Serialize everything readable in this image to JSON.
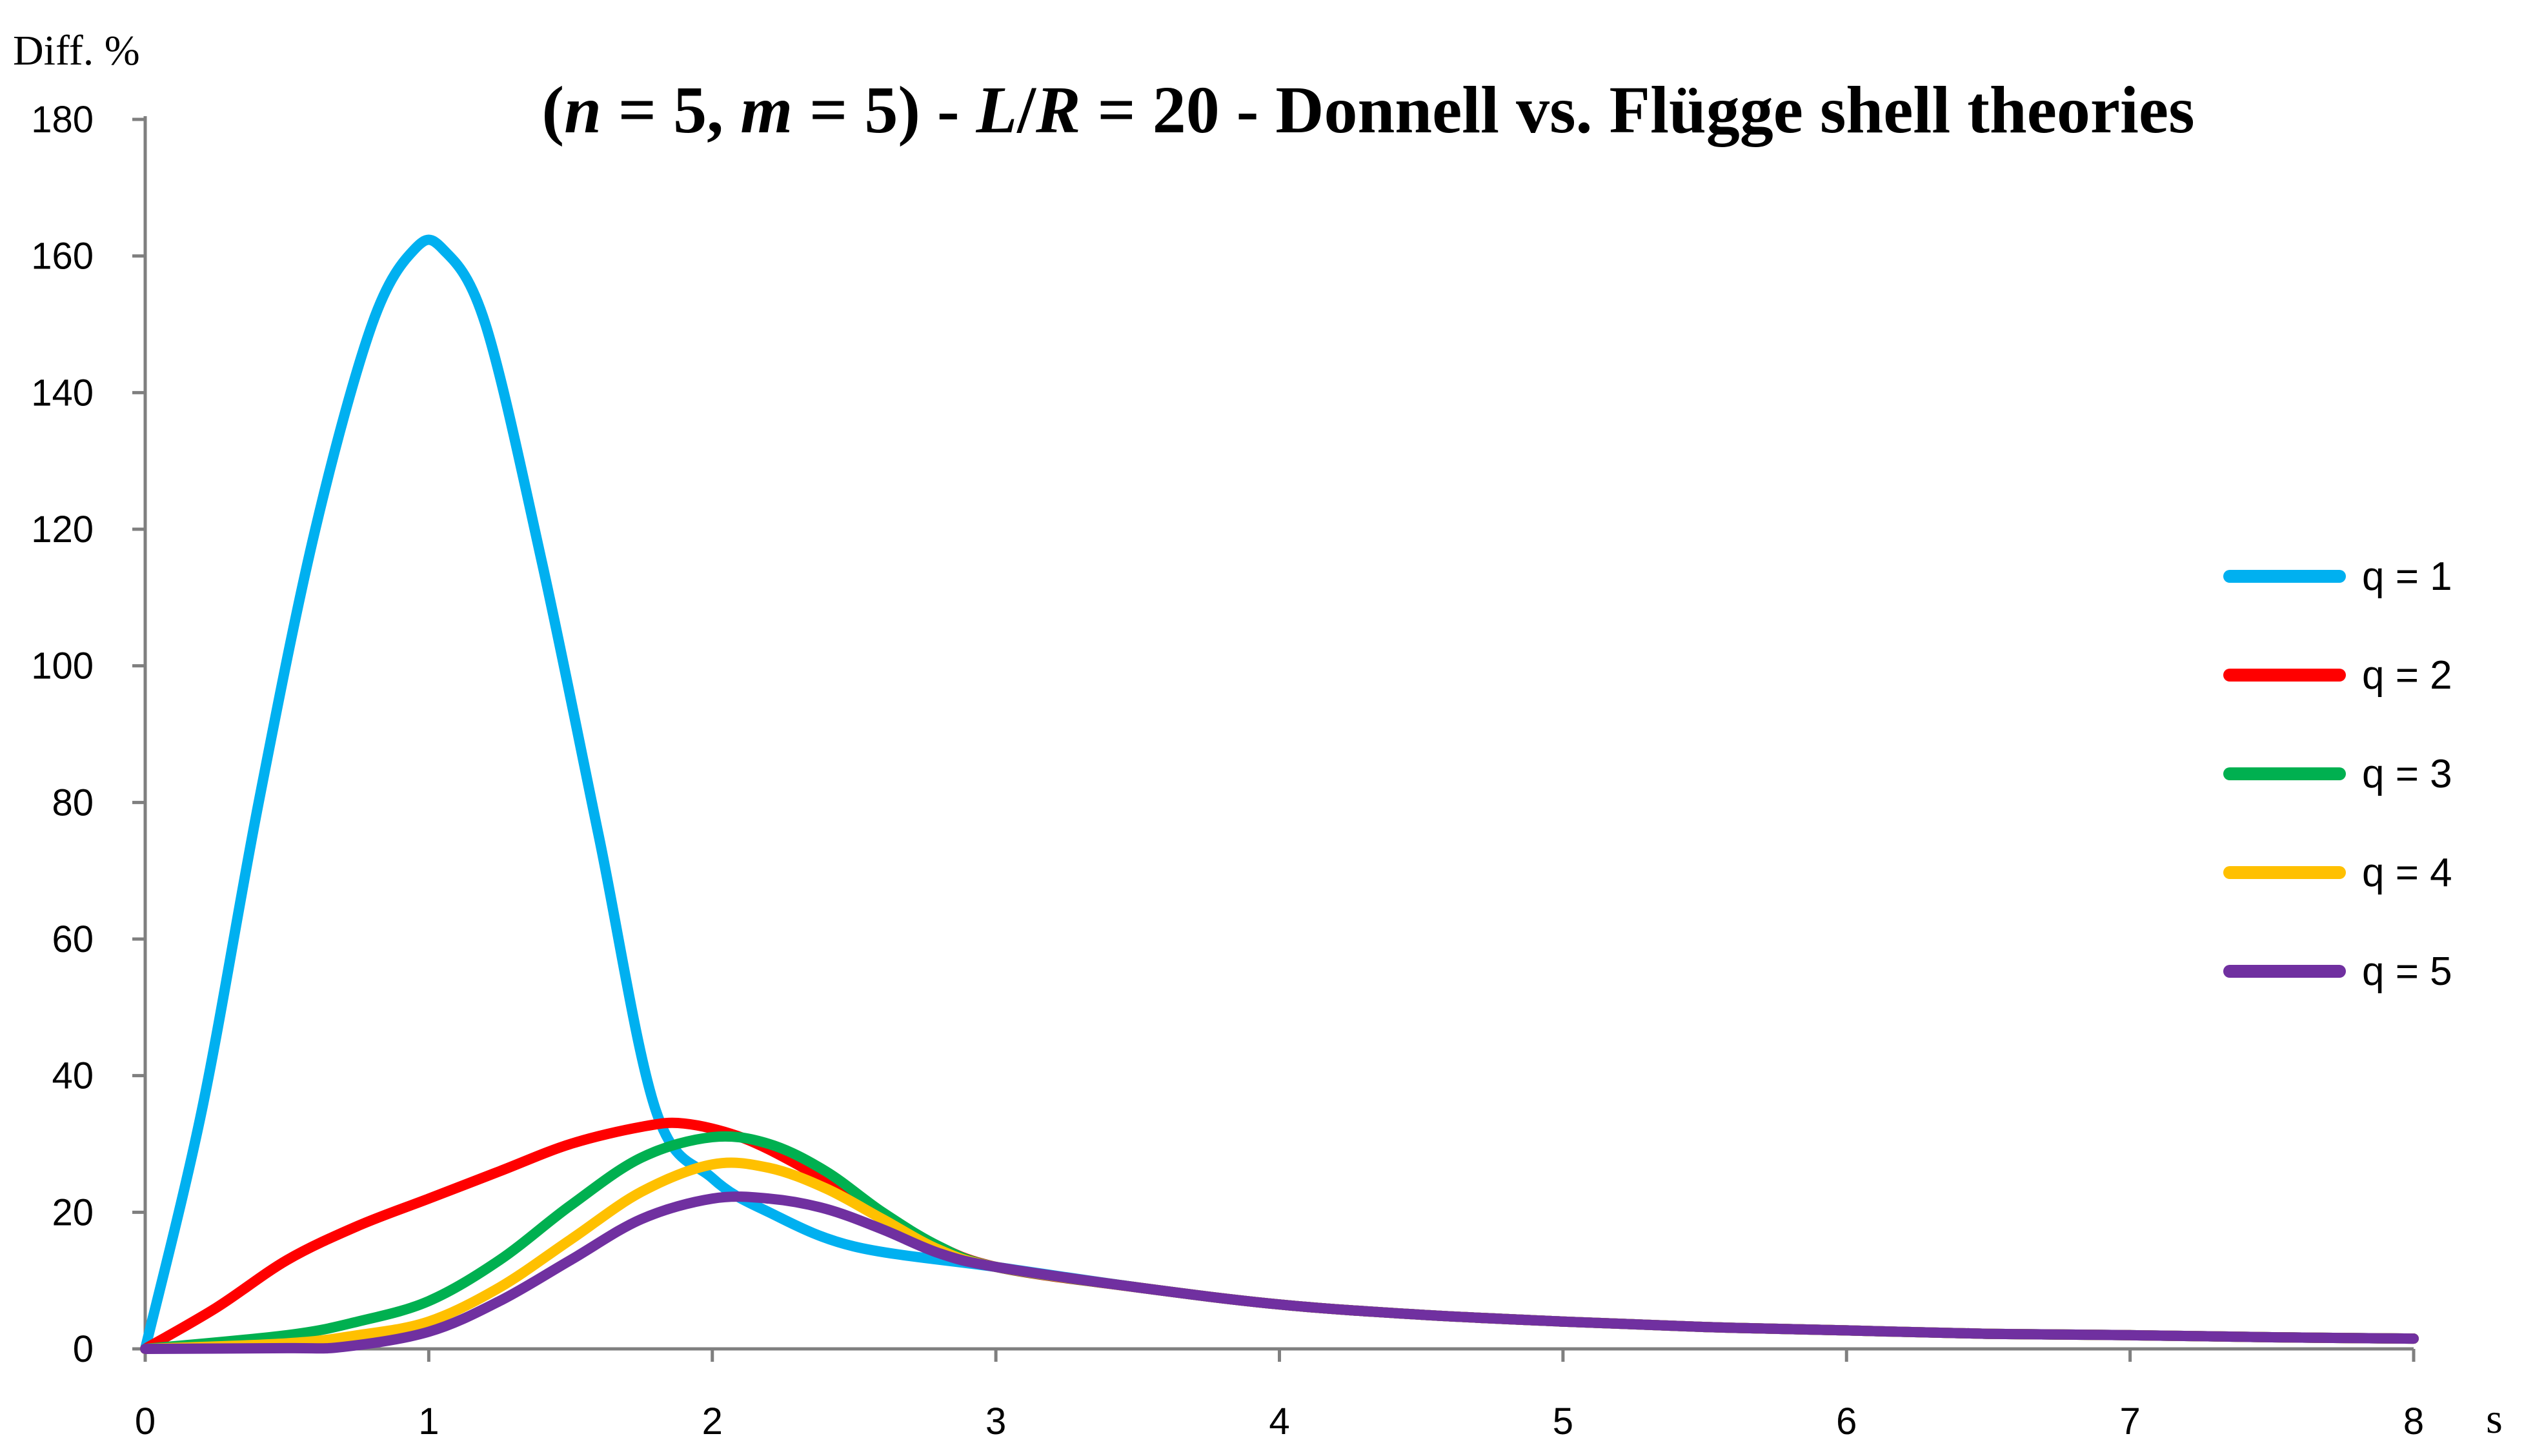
{
  "chart_data": {
    "type": "line",
    "title_parts": [
      {
        "text": "(",
        "italic": false
      },
      {
        "text": "n",
        "italic": true
      },
      {
        "text": " = 5, ",
        "italic": false
      },
      {
        "text": "m",
        "italic": true
      },
      {
        "text": " = 5) - ",
        "italic": false
      },
      {
        "text": "L",
        "italic": true
      },
      {
        "text": "/",
        "italic": false
      },
      {
        "text": "R",
        "italic": true
      },
      {
        "text": " = 20 - Donnell vs. Flügge shell theories",
        "italic": false
      }
    ],
    "ylabel": "Diff. %",
    "xlabel": "s",
    "xlim": [
      0,
      8
    ],
    "ylim": [
      0,
      180
    ],
    "x_ticks": [
      0,
      1,
      2,
      3,
      4,
      5,
      6,
      7,
      8
    ],
    "y_ticks": [
      0,
      20,
      40,
      60,
      80,
      100,
      120,
      140,
      160,
      180
    ],
    "grid": false,
    "legend_position": "right",
    "series": [
      {
        "name": "q = 1",
        "color": "#00B0F0",
        "points": [
          [
            0,
            0
          ],
          [
            0.2,
            35
          ],
          [
            0.4,
            80
          ],
          [
            0.6,
            120
          ],
          [
            0.8,
            150
          ],
          [
            0.95,
            161
          ],
          [
            1.05,
            161
          ],
          [
            1.2,
            150
          ],
          [
            1.4,
            115
          ],
          [
            1.6,
            75
          ],
          [
            1.8,
            35
          ],
          [
            2.0,
            25
          ],
          [
            2.2,
            20
          ],
          [
            2.5,
            15
          ],
          [
            3,
            12
          ],
          [
            3.5,
            9
          ],
          [
            4,
            6.5
          ],
          [
            4.5,
            5
          ],
          [
            5,
            4
          ],
          [
            5.5,
            3.2
          ],
          [
            6,
            2.7
          ],
          [
            6.5,
            2.2
          ],
          [
            7,
            2
          ],
          [
            7.5,
            1.7
          ],
          [
            8,
            1.5
          ]
        ]
      },
      {
        "name": "q = 2",
        "color": "#FF0000",
        "points": [
          [
            0,
            0
          ],
          [
            0.25,
            6
          ],
          [
            0.5,
            13
          ],
          [
            0.75,
            18
          ],
          [
            1,
            22
          ],
          [
            1.25,
            26
          ],
          [
            1.5,
            30
          ],
          [
            1.75,
            32.5
          ],
          [
            1.9,
            33
          ],
          [
            2.1,
            31
          ],
          [
            2.3,
            27
          ],
          [
            2.5,
            22
          ],
          [
            2.75,
            16
          ],
          [
            3,
            12
          ],
          [
            3.5,
            9
          ],
          [
            4,
            6.5
          ],
          [
            4.5,
            5
          ],
          [
            5,
            4
          ],
          [
            5.5,
            3.2
          ],
          [
            6,
            2.7
          ],
          [
            6.5,
            2.2
          ],
          [
            7,
            2
          ],
          [
            7.5,
            1.7
          ],
          [
            8,
            1.5
          ]
        ]
      },
      {
        "name": "q = 3",
        "color": "#00B050",
        "points": [
          [
            0,
            0
          ],
          [
            0.5,
            2
          ],
          [
            0.75,
            4
          ],
          [
            1,
            7
          ],
          [
            1.25,
            13
          ],
          [
            1.5,
            21
          ],
          [
            1.75,
            28
          ],
          [
            2,
            31
          ],
          [
            2.2,
            30
          ],
          [
            2.4,
            26
          ],
          [
            2.6,
            20
          ],
          [
            2.8,
            15
          ],
          [
            3,
            12
          ],
          [
            3.5,
            9
          ],
          [
            4,
            6.5
          ],
          [
            4.5,
            5
          ],
          [
            5,
            4
          ],
          [
            5.5,
            3.2
          ],
          [
            6,
            2.7
          ],
          [
            6.5,
            2.2
          ],
          [
            7,
            2
          ],
          [
            7.5,
            1.7
          ],
          [
            8,
            1.5
          ]
        ]
      },
      {
        "name": "q = 4",
        "color": "#FFC000",
        "points": [
          [
            0,
            0
          ],
          [
            0.5,
            0.8
          ],
          [
            0.75,
            2
          ],
          [
            1,
            4
          ],
          [
            1.25,
            9
          ],
          [
            1.5,
            16
          ],
          [
            1.75,
            23
          ],
          [
            2,
            27
          ],
          [
            2.2,
            26.5
          ],
          [
            2.4,
            23.5
          ],
          [
            2.6,
            19
          ],
          [
            2.8,
            14.5
          ],
          [
            3,
            12
          ],
          [
            3.5,
            9
          ],
          [
            4,
            6.5
          ],
          [
            4.5,
            5
          ],
          [
            5,
            4
          ],
          [
            5.5,
            3.2
          ],
          [
            6,
            2.7
          ],
          [
            6.5,
            2.2
          ],
          [
            7,
            2
          ],
          [
            7.5,
            1.7
          ],
          [
            8,
            1.5
          ]
        ]
      },
      {
        "name": "q = 5",
        "color": "#7030A0",
        "points": [
          [
            0,
            0
          ],
          [
            0.5,
            0.1
          ],
          [
            0.7,
            0.3
          ],
          [
            1,
            2.5
          ],
          [
            1.25,
            7
          ],
          [
            1.5,
            13
          ],
          [
            1.75,
            19
          ],
          [
            2,
            22
          ],
          [
            2.2,
            22
          ],
          [
            2.4,
            20.5
          ],
          [
            2.6,
            17.5
          ],
          [
            2.8,
            14
          ],
          [
            3,
            12
          ],
          [
            3.5,
            9
          ],
          [
            4,
            6.5
          ],
          [
            4.5,
            5
          ],
          [
            5,
            4
          ],
          [
            5.5,
            3.2
          ],
          [
            6,
            2.7
          ],
          [
            6.5,
            2.2
          ],
          [
            7,
            2
          ],
          [
            7.5,
            1.7
          ],
          [
            8,
            1.5
          ]
        ]
      }
    ]
  }
}
